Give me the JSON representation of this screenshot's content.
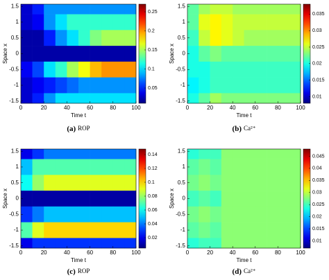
{
  "chart_data": [
    {
      "type": "heatmap",
      "panel_label": "(a)",
      "caption": "ROP",
      "xlabel": "Time t",
      "ylabel": "Space x",
      "x": [
        5,
        15,
        25,
        35,
        45,
        55,
        65,
        75,
        85,
        95
      ],
      "y": [
        1.5,
        1,
        0.5,
        0,
        -0.5,
        -1,
        -1.5
      ],
      "z": [
        [
          0.03,
          0.05,
          0.08,
          0.08,
          0.08,
          0.08,
          0.08,
          0.08,
          0.08,
          0.08
        ],
        [
          0.03,
          0.04,
          0.08,
          0.1,
          0.12,
          0.12,
          0.12,
          0.12,
          0.12,
          0.12
        ],
        [
          0.02,
          0.02,
          0.05,
          0.08,
          0.1,
          0.12,
          0.14,
          0.15,
          0.15,
          0.15
        ],
        [
          0.02,
          0.02,
          0.02,
          0.02,
          0.02,
          0.02,
          0.02,
          0.02,
          0.02,
          0.02
        ],
        [
          0.04,
          0.06,
          0.1,
          0.12,
          0.15,
          0.17,
          0.19,
          0.2,
          0.2,
          0.2
        ],
        [
          0.03,
          0.04,
          0.05,
          0.06,
          0.07,
          0.08,
          0.08,
          0.08,
          0.08,
          0.08
        ],
        [
          0.03,
          0.05,
          0.08,
          0.1,
          0.1,
          0.1,
          0.1,
          0.1,
          0.1,
          0.1
        ]
      ],
      "xlim": [
        0,
        100
      ],
      "ylim": [
        -1.57,
        1.57
      ],
      "xticks": [
        0,
        20,
        40,
        60,
        80,
        100
      ],
      "yticks": [
        -1.5,
        -1,
        -0.5,
        0,
        0.5,
        1,
        1.5
      ],
      "clim": [
        0.01,
        0.27
      ],
      "cticks": [
        0.05,
        0.1,
        0.15,
        0.2,
        0.25
      ]
    },
    {
      "type": "heatmap",
      "panel_label": "(b)",
      "caption": "Ca²⁺",
      "xlabel": "Time t",
      "ylabel": "Space x",
      "x": [
        5,
        15,
        25,
        35,
        45,
        55,
        65,
        75,
        85,
        95
      ],
      "y": [
        1.5,
        1,
        0.5,
        0,
        -0.5,
        -1,
        -1.5
      ],
      "z": [
        [
          0.022,
          0.024,
          0.025,
          0.025,
          0.024,
          0.024,
          0.024,
          0.024,
          0.024,
          0.024
        ],
        [
          0.022,
          0.026,
          0.027,
          0.026,
          0.025,
          0.025,
          0.025,
          0.025,
          0.025,
          0.025
        ],
        [
          0.021,
          0.025,
          0.027,
          0.026,
          0.025,
          0.024,
          0.024,
          0.024,
          0.024,
          0.024
        ],
        [
          0.02,
          0.022,
          0.023,
          0.022,
          0.022,
          0.022,
          0.022,
          0.022,
          0.022,
          0.022
        ],
        [
          0.02,
          0.02,
          0.021,
          0.021,
          0.021,
          0.021,
          0.021,
          0.021,
          0.021,
          0.021
        ],
        [
          0.019,
          0.02,
          0.021,
          0.021,
          0.021,
          0.021,
          0.021,
          0.021,
          0.021,
          0.021
        ],
        [
          0.02,
          0.022,
          0.024,
          0.023,
          0.023,
          0.023,
          0.023,
          0.023,
          0.023,
          0.023
        ]
      ],
      "xlim": [
        0,
        100
      ],
      "ylim": [
        -1.57,
        1.57
      ],
      "xticks": [
        0,
        20,
        40,
        60,
        80,
        100
      ],
      "yticks": [
        -1.5,
        -1,
        -0.5,
        0,
        0.5,
        1,
        1.5
      ],
      "clim": [
        0.008,
        0.038
      ],
      "cticks": [
        0.01,
        0.015,
        0.02,
        0.025,
        0.03,
        0.035
      ]
    },
    {
      "type": "heatmap",
      "panel_label": "(c)",
      "caption": "ROP",
      "xlabel": "Time t",
      "ylabel": "Space x",
      "x": [
        5,
        15,
        25,
        35,
        45,
        55,
        65,
        75,
        85,
        95
      ],
      "y": [
        1.5,
        1,
        0.5,
        0,
        -0.5,
        -1,
        -1.5
      ],
      "z": [
        [
          0.02,
          0.03,
          0.04,
          0.04,
          0.04,
          0.04,
          0.04,
          0.04,
          0.04,
          0.04
        ],
        [
          0.05,
          0.07,
          0.07,
          0.07,
          0.07,
          0.07,
          0.07,
          0.07,
          0.07,
          0.07
        ],
        [
          0.06,
          0.08,
          0.09,
          0.09,
          0.09,
          0.09,
          0.09,
          0.09,
          0.09,
          0.09
        ],
        [
          0.01,
          0.01,
          0.01,
          0.01,
          0.01,
          0.01,
          0.01,
          0.01,
          0.01,
          0.01
        ],
        [
          0.03,
          0.04,
          0.05,
          0.05,
          0.05,
          0.05,
          0.05,
          0.05,
          0.05,
          0.05
        ],
        [
          0.07,
          0.09,
          0.1,
          0.1,
          0.1,
          0.1,
          0.1,
          0.1,
          0.1,
          0.1
        ],
        [
          0.02,
          0.03,
          0.03,
          0.03,
          0.03,
          0.03,
          0.03,
          0.03,
          0.03,
          0.03
        ]
      ],
      "xlim": [
        0,
        100
      ],
      "ylim": [
        -1.57,
        1.57
      ],
      "xticks": [
        0,
        20,
        40,
        60,
        80,
        100
      ],
      "yticks": [
        -1.5,
        -1,
        -0.5,
        0,
        0.5,
        1,
        1.5
      ],
      "clim": [
        0.005,
        0.148
      ],
      "cticks": [
        0.02,
        0.04,
        0.06,
        0.08,
        0.1,
        0.12,
        0.14
      ]
    },
    {
      "type": "heatmap",
      "panel_label": "(d)",
      "caption": "Ca²⁺",
      "xlabel": "Time t",
      "ylabel": "Space x",
      "x": [
        5,
        15,
        25,
        35,
        45,
        55,
        65,
        75,
        85,
        95
      ],
      "y": [
        1.5,
        1,
        0.5,
        0,
        -0.5,
        -1,
        -1.5
      ],
      "z": [
        [
          0.024,
          0.025,
          0.025,
          0.028,
          0.028,
          0.028,
          0.028,
          0.028,
          0.028,
          0.028
        ],
        [
          0.026,
          0.027,
          0.026,
          0.028,
          0.028,
          0.028,
          0.028,
          0.028,
          0.028,
          0.028
        ],
        [
          0.027,
          0.028,
          0.027,
          0.028,
          0.028,
          0.028,
          0.028,
          0.028,
          0.028,
          0.028
        ],
        [
          0.025,
          0.026,
          0.025,
          0.028,
          0.028,
          0.028,
          0.028,
          0.028,
          0.028,
          0.028
        ],
        [
          0.027,
          0.028,
          0.027,
          0.028,
          0.028,
          0.028,
          0.028,
          0.028,
          0.028,
          0.028
        ],
        [
          0.026,
          0.027,
          0.026,
          0.028,
          0.028,
          0.028,
          0.028,
          0.028,
          0.028,
          0.028
        ],
        [
          0.024,
          0.025,
          0.025,
          0.028,
          0.028,
          0.028,
          0.028,
          0.028,
          0.028,
          0.028
        ]
      ],
      "xlim": [
        0,
        100
      ],
      "ylim": [
        -1.57,
        1.57
      ],
      "xticks": [
        0,
        20,
        40,
        60,
        80,
        100
      ],
      "yticks": [
        -1.5,
        -1,
        -0.5,
        0,
        0.5,
        1,
        1.5
      ],
      "clim": [
        0.007,
        0.048
      ],
      "cticks": [
        0.01,
        0.015,
        0.02,
        0.025,
        0.03,
        0.035,
        0.04,
        0.045
      ]
    }
  ]
}
